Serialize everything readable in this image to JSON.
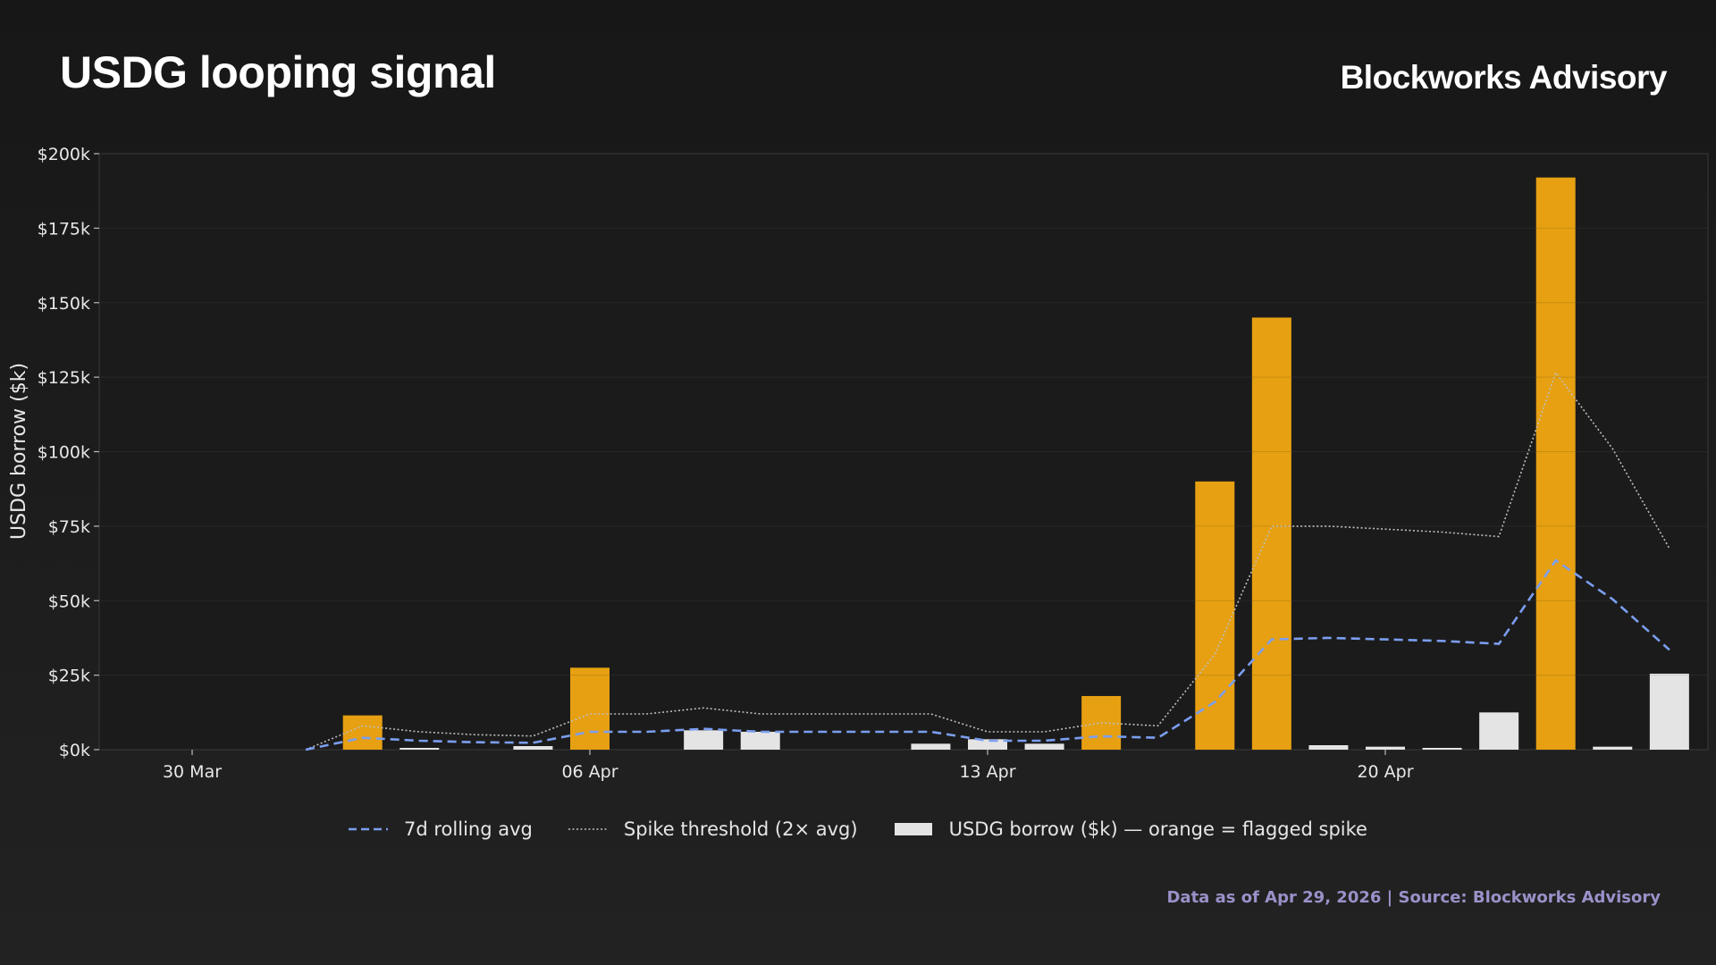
{
  "header": {
    "title": "USDG looping signal",
    "brand": "Blockworks Advisory"
  },
  "footer": {
    "source": "Data as of Apr 29, 2026 | Source: Blockworks Advisory"
  },
  "legend": {
    "items": [
      {
        "label": "7d rolling avg",
        "style": "dashed",
        "color": "#7b9ef0"
      },
      {
        "label": "Spike threshold (2× avg)",
        "style": "dotted",
        "color": "#bfbfbf"
      },
      {
        "label": "USDG borrow ($k) — orange = flagged spike",
        "style": "box",
        "color": "#e6e6e6"
      }
    ]
  },
  "colors": {
    "spike": "#e6a012",
    "normal": "#e4e4e4",
    "avg": "#7b9ef0",
    "threshold": "#bdbdbd",
    "axis": "#444444",
    "grid": "#2e2e2e"
  },
  "chart_data": {
    "type": "bar",
    "ylabel": "USDG borrow ($k)",
    "ylim": [
      0,
      200
    ],
    "yticks": [
      0,
      25,
      50,
      75,
      100,
      125,
      150,
      175,
      200
    ],
    "ytick_labels": [
      "$0k",
      "$25k",
      "$50k",
      "$75k",
      "$100k",
      "$125k",
      "$150k",
      "$175k",
      "$200k"
    ],
    "xticks": [
      {
        "date": "2026-03-30",
        "label": "30 Mar"
      },
      {
        "date": "2026-04-06",
        "label": "06 Apr"
      },
      {
        "date": "2026-04-13",
        "label": "13 Apr"
      },
      {
        "date": "2026-04-20",
        "label": "20 Apr"
      }
    ],
    "x": [
      "2026-03-30",
      "2026-03-31",
      "2026-04-01",
      "2026-04-02",
      "2026-04-03",
      "2026-04-04",
      "2026-04-05",
      "2026-04-06",
      "2026-04-07",
      "2026-04-08",
      "2026-04-09",
      "2026-04-10",
      "2026-04-11",
      "2026-04-12",
      "2026-04-13",
      "2026-04-14",
      "2026-04-15",
      "2026-04-16",
      "2026-04-17",
      "2026-04-18",
      "2026-04-19",
      "2026-04-20",
      "2026-04-21",
      "2026-04-22",
      "2026-04-23",
      "2026-04-24",
      "2026-04-25",
      "2026-04-26",
      "2026-04-27"
    ],
    "series": [
      {
        "name": "USDG borrow ($k) — orange = flagged spike",
        "values": [
          0,
          0,
          0,
          11.5,
          0.5,
          0,
          1.2,
          27.5,
          0,
          6.5,
          6,
          0,
          0,
          2,
          3.5,
          2,
          18,
          0,
          90,
          145,
          1.5,
          1,
          0.3,
          12.5,
          192,
          1,
          25.5,
          null,
          null
        ],
        "flagged": [
          false,
          false,
          false,
          true,
          false,
          false,
          false,
          true,
          false,
          false,
          false,
          false,
          false,
          false,
          false,
          false,
          true,
          false,
          true,
          true,
          false,
          false,
          false,
          false,
          true,
          false,
          false,
          false,
          false
        ]
      },
      {
        "name": "7d rolling avg",
        "values": [
          null,
          null,
          0,
          4,
          3,
          2.5,
          2.3,
          6,
          6,
          7,
          6,
          6,
          6,
          6,
          3,
          3,
          4.5,
          4,
          16,
          37,
          37.5,
          37,
          36.5,
          35.5,
          63.5,
          50.5,
          33.5,
          null,
          null
        ]
      },
      {
        "name": "Spike threshold (2× avg)",
        "values": [
          null,
          null,
          0,
          8,
          6,
          5,
          4.6,
          12,
          12,
          14,
          12,
          12,
          12,
          12,
          6,
          6,
          9,
          8,
          32,
          75,
          75,
          74,
          73,
          71.5,
          126.5,
          101,
          67.5,
          null,
          null
        ]
      }
    ]
  }
}
